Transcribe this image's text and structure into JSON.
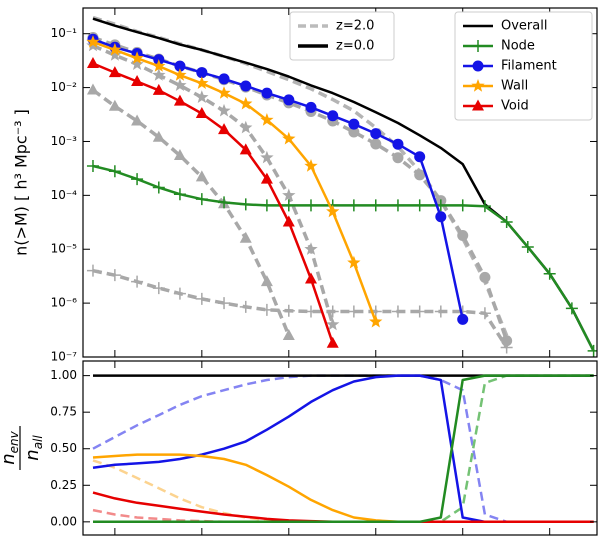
{
  "chart_data": [
    {
      "type": "line",
      "ylog": true,
      "xlog": true,
      "legend": "upper right",
      "ylabel": "n(>M)  [ h³ Mpc⁻³ ]",
      "x": [
        5600000000.0,
        10000000000.0,
        18000000000.0,
        32000000000.0,
        56000000000.0,
        100000000000.0,
        180000000000.0,
        320000000000.0,
        560000000000.0,
        1000000000000.0,
        1800000000000.0,
        3200000000000.0,
        5600000000000.0,
        10000000000000.0,
        18000000000000.0,
        32000000000000.0,
        56000000000000.0,
        100000000000000.0,
        180000000000000.0,
        320000000000000.0,
        560000000000000.0,
        1000000000000000.0,
        1800000000000000.0,
        3200000000000000.0
      ],
      "xlim": [
        4300000000.0,
        3500000000000000.0
      ],
      "xticks": [
        10000000000.0,
        100000000000.0,
        1000000000000.0,
        10000000000000.0,
        100000000000000.0,
        1000000000000000.0
      ],
      "ylim": [
        1e-07,
        0.3
      ],
      "yticks": [
        {
          "value": 1e-07,
          "label": "10⁻⁷"
        },
        {
          "value": 1e-06,
          "label": "10⁻⁶"
        },
        {
          "value": 1e-05,
          "label": "10⁻⁵"
        },
        {
          "value": 0.0001,
          "label": "10⁻⁴"
        },
        {
          "value": 0.001,
          "label": "10⁻³"
        },
        {
          "value": 0.01,
          "label": "10⁻²"
        },
        {
          "value": 0.1,
          "label": "10⁻¹"
        }
      ],
      "linestyle_legend": [
        {
          "name": "z=2.0",
          "color": "#bbbbbb",
          "linestyle": "dashed"
        },
        {
          "name": "z=0.0",
          "color": "#000000",
          "linestyle": "solid"
        }
      ],
      "series": [
        {
          "color": "#b4b4b4",
          "linestyle": "dashed",
          "marker": "none",
          "values": [
            0.2,
            0.15,
            0.11,
            0.085,
            0.065,
            0.05,
            0.038,
            0.028,
            0.02,
            0.014,
            0.0095,
            0.006,
            0.0037,
            0.0018,
            0.0008,
            0.00028,
            8e-05,
            1.6e-05,
            2.5e-06,
            2.5e-07,
            null,
            null,
            null,
            null
          ]
        },
        {
          "color": "#a8a8a8",
          "linestyle": "dashed",
          "marker": "circle",
          "values": [
            0.085,
            0.062,
            0.045,
            0.034,
            0.025,
            0.019,
            0.014,
            0.0102,
            0.0073,
            0.0052,
            0.0036,
            0.0024,
            0.0015,
            0.0009,
            0.0005,
            0.00024,
            8e-05,
            1.8e-05,
            3e-06,
            2e-07,
            null,
            null,
            null,
            null
          ]
        },
        {
          "color": "#a8a8a8",
          "linestyle": "dashed",
          "marker": "star",
          "values": [
            0.06,
            0.04,
            0.027,
            0.017,
            0.011,
            0.0066,
            0.0037,
            0.0018,
            0.0005,
            0.0001,
            1e-05,
            4e-07,
            null,
            null,
            null,
            null,
            null,
            null,
            null,
            null,
            null,
            null,
            null,
            null
          ]
        },
        {
          "color": "#a8a8a8",
          "linestyle": "dashed",
          "marker": "triangle",
          "values": [
            0.009,
            0.0045,
            0.0024,
            0.0012,
            0.00055,
            0.00022,
            7e-05,
            1.6e-05,
            2.5e-06,
            2.5e-07,
            null,
            null,
            null,
            null,
            null,
            null,
            null,
            null,
            null,
            null,
            null,
            null,
            null,
            null
          ]
        },
        {
          "color": "#a8a8a8",
          "linestyle": "dashed",
          "marker": "plus",
          "values": [
            4e-06,
            3.3e-06,
            2.5e-06,
            1.9e-06,
            1.5e-06,
            1.2e-06,
            1e-06,
            8.5e-07,
            7.5e-07,
            7.2e-07,
            7e-07,
            7e-07,
            7e-07,
            7e-07,
            7e-07,
            7e-07,
            7e-07,
            7e-07,
            6.5e-07,
            1.5e-07,
            null,
            null,
            null,
            null
          ]
        },
        {
          "name": "Overall",
          "color": "#000000",
          "linestyle": "solid",
          "marker": "none",
          "values": [
            0.19,
            0.141,
            0.107,
            0.083,
            0.063,
            0.05,
            0.038,
            0.029,
            0.022,
            0.016,
            0.011,
            0.0079,
            0.0054,
            0.0035,
            0.0022,
            0.0013,
            0.00076,
            0.00038,
            6.8e-05,
            3.2e-05,
            1.1e-05,
            3.5e-06,
            8e-07,
            1.3e-07
          ]
        },
        {
          "name": "Node",
          "color": "#228b22",
          "linestyle": "solid",
          "marker": "plus",
          "values": [
            0.00035,
            0.00028,
            0.0002,
            0.00014,
            0.000105,
            8.5e-05,
            7.4e-05,
            6.8e-05,
            6.5e-05,
            6.5e-05,
            6.5e-05,
            6.5e-05,
            6.5e-05,
            6.5e-05,
            6.5e-05,
            6.5e-05,
            6.5e-05,
            6.5e-05,
            6.3e-05,
            3.2e-05,
            1.1e-05,
            3.5e-06,
            8e-07,
            1.3e-07
          ]
        },
        {
          "name": "Filament",
          "color": "#1414e6",
          "linestyle": "solid",
          "marker": "circle",
          "values": [
            0.079,
            0.056,
            0.043,
            0.033,
            0.025,
            0.019,
            0.0145,
            0.0107,
            0.0079,
            0.0059,
            0.0043,
            0.003,
            0.0021,
            0.0014,
            0.00089,
            0.00052,
            4e-05,
            5e-07,
            null,
            null,
            null,
            null,
            null,
            null
          ]
        },
        {
          "name": "Wall",
          "color": "#ffa500",
          "linestyle": "solid",
          "marker": "star",
          "values": [
            0.07,
            0.05,
            0.035,
            0.025,
            0.017,
            0.012,
            0.0079,
            0.005,
            0.0025,
            0.00112,
            0.00035,
            5e-05,
            5.6e-06,
            4.5e-07,
            null,
            null,
            null,
            null,
            null,
            null,
            null,
            null,
            null,
            null
          ]
        },
        {
          "name": "Void",
          "color": "#e60000",
          "linestyle": "solid",
          "marker": "triangle",
          "values": [
            0.028,
            0.019,
            0.013,
            0.0089,
            0.0056,
            0.0033,
            0.00166,
            0.0007,
            0.0002,
            3.2e-05,
            2.8e-06,
            1.8e-07,
            null,
            null,
            null,
            null,
            null,
            null,
            null,
            null,
            null,
            null,
            null,
            null
          ]
        }
      ]
    },
    {
      "type": "line",
      "xlog": true,
      "ylabel": {
        "numerator": [
          "n",
          "env"
        ],
        "denominator": [
          "n",
          "all"
        ]
      },
      "x": [
        5600000000.0,
        10000000000.0,
        18000000000.0,
        32000000000.0,
        56000000000.0,
        100000000000.0,
        180000000000.0,
        320000000000.0,
        560000000000.0,
        1000000000000.0,
        1800000000000.0,
        3200000000000.0,
        5600000000000.0,
        10000000000000.0,
        18000000000000.0,
        32000000000000.0,
        56000000000000.0,
        100000000000000.0,
        180000000000000.0,
        320000000000000.0,
        560000000000000.0,
        1000000000000000.0,
        1800000000000000.0,
        3200000000000000.0
      ],
      "xlim": [
        4300000000.0,
        3500000000000000.0
      ],
      "xticks": [
        10000000000.0,
        100000000000.0,
        1000000000000.0,
        10000000000000.0,
        100000000000000.0,
        1000000000000000.0
      ],
      "ylim": [
        -0.09,
        1.1
      ],
      "yticks": [
        {
          "value": 0,
          "label": "0.00"
        },
        {
          "value": 0.25,
          "label": "0.25"
        },
        {
          "value": 0.5,
          "label": "0.50"
        },
        {
          "value": 0.75,
          "label": "0.75"
        },
        {
          "value": 1,
          "label": "1.00"
        }
      ],
      "series": [
        {
          "color": "#8484f2",
          "linestyle": "dashed",
          "values": [
            0.5,
            0.58,
            0.66,
            0.73,
            0.8,
            0.86,
            0.9,
            0.94,
            0.97,
            0.99,
            1,
            1,
            1,
            1,
            1,
            1,
            0.97,
            0.9,
            0.05,
            0,
            0,
            0,
            0,
            0
          ]
        },
        {
          "color": "#fcd38f",
          "linestyle": "dashed",
          "values": [
            0.42,
            0.37,
            0.3,
            0.23,
            0.16,
            0.1,
            0.06,
            0.03,
            0.01,
            0,
            0,
            0,
            0,
            0,
            0,
            0,
            0,
            0,
            0,
            0,
            0,
            0,
            0,
            0
          ]
        },
        {
          "color": "#f28a8a",
          "linestyle": "dashed",
          "values": [
            0.08,
            0.05,
            0.03,
            0.02,
            0.01,
            0.005,
            0,
            0,
            0,
            0,
            0,
            0,
            0,
            0,
            0,
            0,
            0,
            0,
            0,
            0,
            0,
            0,
            0,
            0
          ]
        },
        {
          "color": "#74c274",
          "linestyle": "dashed",
          "values": [
            0,
            0,
            0,
            0,
            0,
            0,
            0,
            0,
            0,
            0,
            0,
            0,
            0,
            0,
            0,
            0,
            0,
            0.1,
            0.95,
            1,
            1,
            1,
            1,
            1
          ]
        },
        {
          "color": "#000000",
          "linestyle": "solid",
          "values": [
            1,
            1,
            1,
            1,
            1,
            1,
            1,
            1,
            1,
            1,
            1,
            1,
            1,
            1,
            1,
            1,
            1,
            1,
            1,
            1,
            1,
            1,
            1,
            1
          ]
        },
        {
          "color": "#1414e6",
          "linestyle": "solid",
          "values": [
            0.37,
            0.39,
            0.4,
            0.41,
            0.43,
            0.46,
            0.5,
            0.55,
            0.63,
            0.72,
            0.82,
            0.9,
            0.96,
            0.99,
            1,
            1,
            0.97,
            0.03,
            0,
            0,
            0,
            0,
            0,
            0
          ]
        },
        {
          "color": "#ffa500",
          "linestyle": "solid",
          "values": [
            0.44,
            0.45,
            0.46,
            0.46,
            0.46,
            0.45,
            0.43,
            0.39,
            0.32,
            0.24,
            0.15,
            0.08,
            0.03,
            0.01,
            0,
            0,
            0,
            0,
            0,
            0,
            0,
            0,
            0,
            0
          ]
        },
        {
          "color": "#e60000",
          "linestyle": "solid",
          "values": [
            0.2,
            0.16,
            0.13,
            0.11,
            0.09,
            0.07,
            0.05,
            0.035,
            0.02,
            0.01,
            0.005,
            0,
            0,
            0,
            0,
            0,
            0,
            0,
            0,
            0,
            0,
            0,
            0,
            0
          ]
        },
        {
          "color": "#228b22",
          "linestyle": "solid",
          "values": [
            0,
            0,
            0,
            0,
            0,
            0,
            0,
            0,
            0,
            0,
            0,
            0,
            0,
            0,
            0,
            0,
            0.03,
            0.97,
            1,
            1,
            1,
            1,
            1,
            1
          ]
        }
      ]
    }
  ]
}
